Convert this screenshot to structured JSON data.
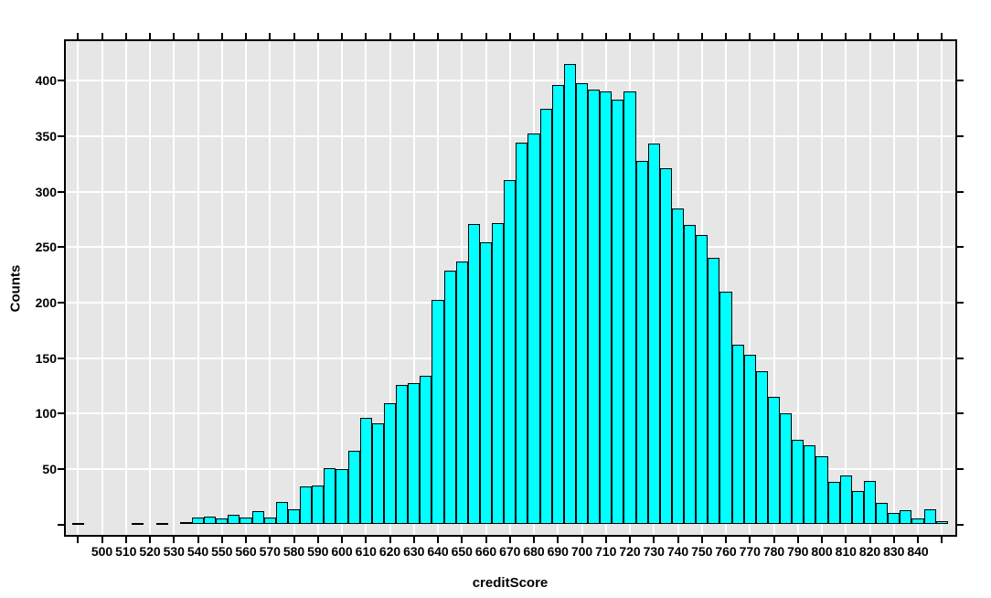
{
  "chart_data": {
    "type": "bar",
    "subtype": "histogram",
    "title": "",
    "xlabel": "creditScore",
    "ylabel": "Counts",
    "grid": true,
    "legend": "none",
    "bin_width": 5,
    "bin_centers": [
      490,
      495,
      500,
      505,
      510,
      515,
      520,
      525,
      530,
      535,
      540,
      545,
      550,
      555,
      560,
      565,
      570,
      575,
      580,
      585,
      590,
      595,
      600,
      605,
      610,
      615,
      620,
      625,
      630,
      635,
      640,
      645,
      650,
      655,
      660,
      665,
      670,
      675,
      680,
      685,
      690,
      695,
      700,
      705,
      710,
      715,
      720,
      725,
      730,
      735,
      740,
      745,
      750,
      755,
      760,
      765,
      770,
      775,
      780,
      785,
      790,
      795,
      800,
      805,
      810,
      815,
      820,
      825,
      830,
      835,
      840,
      845,
      850
    ],
    "counts": [
      1,
      0,
      0,
      0,
      0,
      1,
      0,
      1,
      0,
      2,
      6,
      7,
      5,
      9,
      6,
      12,
      6,
      20,
      14,
      34,
      35,
      51,
      50,
      66,
      96,
      91,
      109,
      126,
      127,
      134,
      202,
      229,
      237,
      271,
      254,
      272,
      310,
      344,
      352,
      375,
      396,
      415,
      398,
      392,
      390,
      383,
      390,
      328,
      343,
      321,
      285,
      270,
      261,
      240,
      210,
      162,
      153,
      138,
      115,
      100,
      76,
      71,
      61,
      38,
      44,
      30,
      39,
      19,
      10,
      13,
      5,
      14,
      3
    ],
    "x_axis": {
      "ticks": [
        490,
        500,
        510,
        520,
        530,
        540,
        550,
        560,
        570,
        580,
        590,
        600,
        610,
        620,
        630,
        640,
        650,
        660,
        670,
        680,
        690,
        700,
        710,
        720,
        730,
        740,
        750,
        760,
        770,
        780,
        790,
        800,
        810,
        820,
        830,
        840,
        850
      ],
      "labeled_ticks": [
        500,
        510,
        520,
        530,
        540,
        550,
        560,
        570,
        580,
        590,
        600,
        610,
        620,
        630,
        640,
        650,
        660,
        670,
        680,
        690,
        700,
        710,
        720,
        730,
        740,
        750,
        760,
        770,
        780,
        790,
        800,
        810,
        820,
        830,
        840
      ],
      "range": [
        485,
        855
      ]
    },
    "y_axis": {
      "ticks": [
        0,
        50,
        100,
        150,
        200,
        250,
        300,
        350,
        400
      ],
      "labeled_ticks": [
        50,
        100,
        150,
        200,
        250,
        300,
        350,
        400
      ],
      "range": [
        0,
        436
      ]
    },
    "colors": {
      "bar_fill": "#00FFFF",
      "bar_stroke": "#000000",
      "panel_bg": "#E6E6E6",
      "grid": "#FFFFFF",
      "outer_bg": "#FFFFFF",
      "text": "#000000"
    }
  }
}
